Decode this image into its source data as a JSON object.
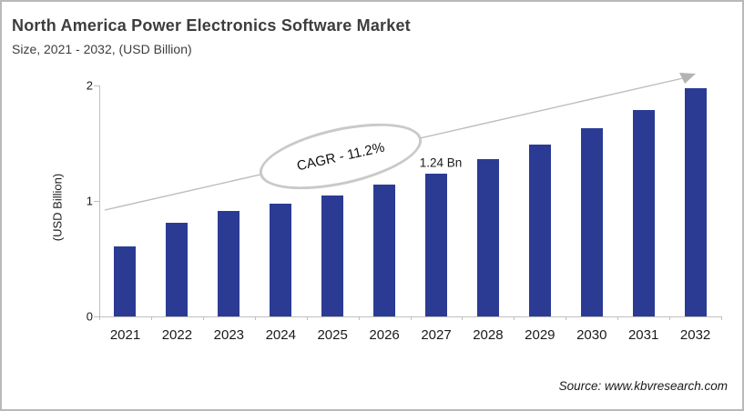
{
  "header": {
    "title": "North America Power Electronics Software Market",
    "subtitle": "Size, 2021 - 2032, (USD Billion)"
  },
  "chart_data": {
    "type": "bar",
    "categories": [
      "2021",
      "2022",
      "2023",
      "2024",
      "2025",
      "2026",
      "2027",
      "2028",
      "2029",
      "2030",
      "2031",
      "2032"
    ],
    "values": [
      0.61,
      0.81,
      0.91,
      0.98,
      1.05,
      1.14,
      1.24,
      1.36,
      1.49,
      1.63,
      1.79,
      1.98
    ],
    "title": "North America Power Electronics Software Market",
    "xlabel": "",
    "ylabel": "(USD Billion)",
    "ylim": [
      0,
      2
    ],
    "yticks": [
      0,
      1,
      2
    ],
    "grid": false,
    "legend": "none",
    "bar_color": "#2b3b94",
    "annotations": {
      "cagr_label": "CAGR - 11.2%",
      "point_label": "1.24 Bn",
      "point_label_category": "2027",
      "trend_arrow": "up-right"
    }
  },
  "colors": {
    "bar": "#2b3b94",
    "axis": "#bfbfbf",
    "trend_line": "#bdbdbd",
    "ellipse_stroke": "#c9c9c9",
    "title_text": "#3d3d3d",
    "frame_border": "#b9b9b9"
  },
  "footer": {
    "source": "Source: www.kbvresearch.com"
  }
}
